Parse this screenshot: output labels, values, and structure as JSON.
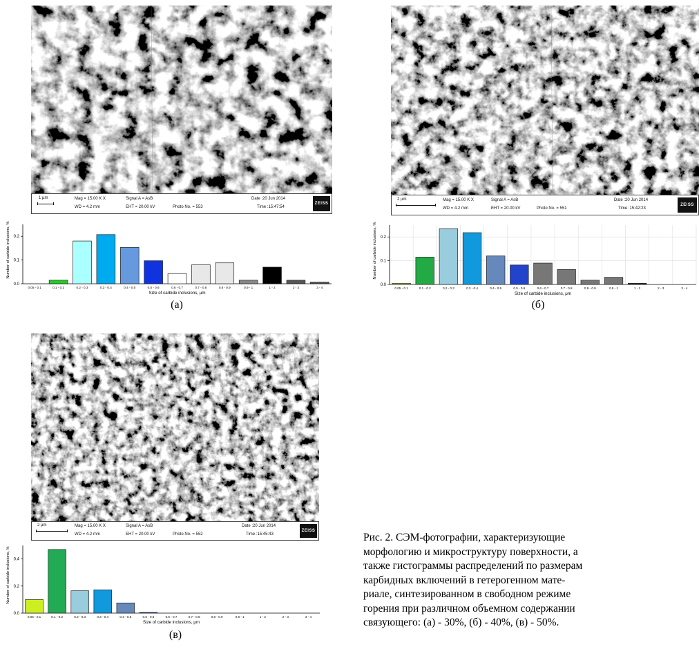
{
  "panels": [
    {
      "label": "(а)",
      "databar": {
        "scale": "1 µm",
        "mag": "Mag =  15.00 K X",
        "wd": "WD = 4.2 mm",
        "signal": "Signal A = AsB",
        "eht": "EHT = 20.00 kV",
        "photo": "Photo No. = 553",
        "date": "Date :20 Jun 2014",
        "time": "Time :15:47:54",
        "logo": "ZEISS"
      }
    },
    {
      "label": "(б)",
      "databar": {
        "scale": "2 µm",
        "mag": "Mag =  15.00 K X",
        "wd": "WD = 4.2 mm",
        "signal": "Signal A = AsB",
        "eht": "EHT = 20.00 kV",
        "photo": "Photo No. = 551",
        "date": "Date :20 Jun 2014",
        "time": "Time :15:42:23",
        "logo": "ZEISS"
      }
    },
    {
      "label": "(в)",
      "databar": {
        "scale": "2 µm",
        "mag": "Mag =  15.00 K X",
        "wd": "WD = 4.2 mm",
        "signal": "Signal A = AsB",
        "eht": "EHT = 20.00 kV",
        "photo": "Photo No. = 552",
        "date": "Date :20 Jun 2014",
        "time": "Time :15:45:43",
        "logo": "ZEISS"
      }
    }
  ],
  "caption_lines": [
    "Рис.  2.  СЭМ-фотографии,  характеризующие",
    "морфологию и микроструктуру поверхности, а",
    "также гистограммы распределений по размерам",
    "карбидных   включений  в  гетерогенном  мате-",
    "риале,  синтезированном  в  свободном  режиме",
    "горения  при  различном  объемном  содержании",
    "связующего: (а) - 30%, (б) - 40%, (в) - 50%."
  ],
  "chart_data": [
    {
      "type": "bar",
      "categories": [
        "0.05 - 0.1",
        "0.1 - 0.2",
        "0.2 - 0.3",
        "0.3 - 0.4",
        "0.4 - 0.5",
        "0.5 - 0.6",
        "0.6 - 0.7",
        "0.7 - 0.8",
        "0.8 - 0.9",
        "0.9 - 1",
        "1 - 2",
        "2 - 3",
        "3 - 4"
      ],
      "values": [
        0.0,
        0.015,
        0.18,
        0.207,
        0.153,
        0.097,
        0.043,
        0.08,
        0.088,
        0.015,
        0.07,
        0.015,
        0.007
      ],
      "colors": [
        "#ffffff",
        "#22cc22",
        "#aaffff",
        "#00aaee",
        "#6699dd",
        "#1133dd",
        "#ffffff",
        "#e8e8e8",
        "#e8e8e8",
        "#888888",
        "#000000",
        "#555555",
        "#555555"
      ],
      "xlabel": "Size of carbide inclusions, μm",
      "ylabel": "Number of carbide inclusions, %",
      "yticks": [
        0.0,
        0.1,
        0.2
      ],
      "ytick_labels": [
        "0.0",
        "0.1",
        "0.2"
      ],
      "ylim": [
        0,
        0.25
      ],
      "grid": false
    },
    {
      "type": "bar",
      "categories": [
        "0.05 - 0.1",
        "0.1 - 0.2",
        "0.2 - 0.3",
        "0.3 - 0.4",
        "0.4 - 0.5",
        "0.5 - 0.6",
        "0.6 - 0.7",
        "0.7 - 0.8",
        "0.8 - 0.9",
        "0.9 - 1",
        "1 - 2",
        "2 - 3",
        "3 - 4"
      ],
      "values": [
        0.005,
        0.115,
        0.235,
        0.218,
        0.12,
        0.082,
        0.09,
        0.063,
        0.018,
        0.03,
        0.005,
        0.0,
        0.0
      ],
      "colors": [
        "#bbcc44",
        "#22aa44",
        "#99ccdd",
        "#1199dd",
        "#6688bb",
        "#2244cc",
        "#777777",
        "#777777",
        "#777777",
        "#777777",
        "#222222",
        "#ffffff",
        "#ffffff"
      ],
      "xlabel": "Size of carbide inclusions, μm",
      "ylabel": "Number of carbide inclusions, %",
      "yticks": [
        0.0,
        0.1,
        0.2
      ],
      "ytick_labels": [
        "0.0",
        "0.1",
        "0.2"
      ],
      "ylim": [
        0,
        0.25
      ],
      "grid": true
    },
    {
      "type": "bar",
      "categories": [
        "0.05 - 0.1",
        "0.1 - 0.2",
        "0.2 - 0.3",
        "0.3 - 0.4",
        "0.4 - 0.5",
        "0.5 - 0.6",
        "0.6 - 0.7",
        "0.7 - 0.8",
        "0.8 - 0.9",
        "0.9 - 1",
        "1 - 2",
        "2 - 3",
        "3 - 4"
      ],
      "values": [
        0.1,
        0.47,
        0.165,
        0.172,
        0.075,
        0.005,
        0.0,
        0.0,
        0.0,
        0.0,
        0.0,
        0.0,
        0.0
      ],
      "colors": [
        "#ccee22",
        "#22aa55",
        "#99ccdd",
        "#1199dd",
        "#6688bb",
        "#2244cc",
        "#777777",
        "#777777",
        "#777777",
        "#777777",
        "#222222",
        "#555555",
        "#555555"
      ],
      "xlabel": "Size of carbide inclusions, μm",
      "ylabel": "Number of carbide inclusions, %",
      "yticks": [
        0.0,
        0.2,
        0.4
      ],
      "ytick_labels": [
        "0.0",
        "0.2",
        "0.4"
      ],
      "ylim": [
        0,
        0.5
      ],
      "grid": false
    }
  ]
}
